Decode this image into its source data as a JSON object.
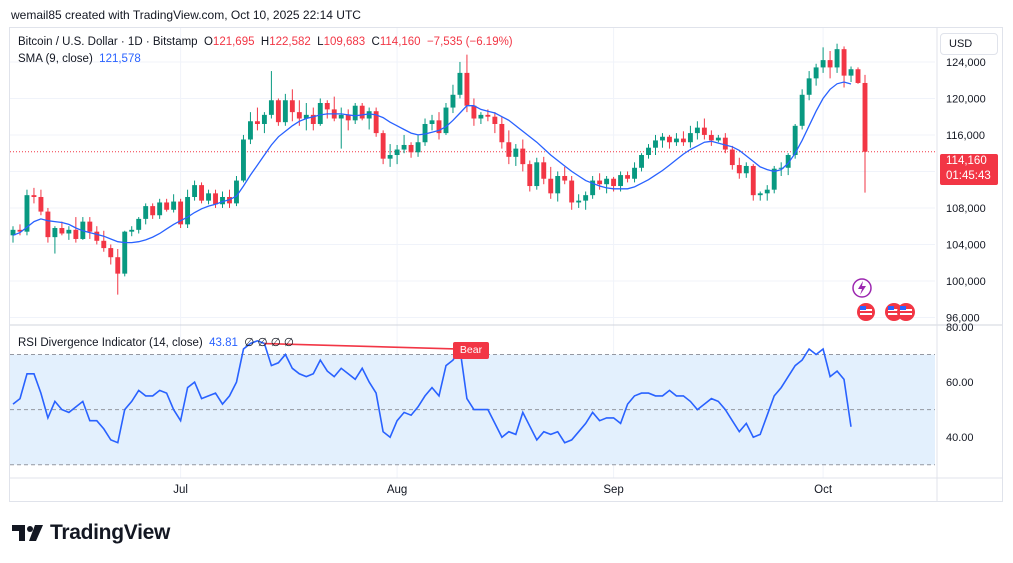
{
  "header": {
    "caption": "wemail85 created with TradingView.com, Oct 10, 2025 22:14 UTC"
  },
  "legend": {
    "symbol": "Bitcoin / U.S. Dollar · 1D · Bitstamp",
    "o_label": "O",
    "o_value": "121,695",
    "h_label": "H",
    "h_value": "122,582",
    "l_label": "L",
    "l_value": "109,683",
    "c_label": "C",
    "c_value": "114,160",
    "change": "−7,535 (−6.19%)",
    "sma_label": "SMA (9, close)",
    "sma_value": "121,578",
    "rsi_label": "RSI Divergence Indicator (14, close)",
    "rsi_value": "43.81",
    "rsi_extra": "∅ ∅ ∅ ∅"
  },
  "currency": "USD",
  "price_badge": {
    "price": "114,160",
    "countdown": "01:45:43"
  },
  "bear_label": "Bear",
  "brand": "TradingView",
  "colors": {
    "up": "#089981",
    "down": "#f23645",
    "sma": "#2962ff",
    "rsi": "#2962ff",
    "rsi_band": "#e3f0fd"
  },
  "icons": [
    "lightning-icon",
    "us-flag-icon",
    "us-flag-icon",
    "us-flag-icon"
  ],
  "chart_data": [
    {
      "type": "candlestick",
      "yaxis_ticks": [
        "124,000",
        "120,000",
        "116,000",
        "112,000",
        "108,000",
        "104,000",
        "100,000",
        "96,000"
      ],
      "yaxis_tick_values": [
        124000,
        120000,
        116000,
        112000,
        108000,
        104000,
        100000,
        96000
      ],
      "ylim": [
        95500,
        127500
      ],
      "xaxis_ticks": [
        "Jul",
        "Aug",
        "Sep",
        "Oct"
      ],
      "xaxis_tick_index": [
        24,
        55,
        86,
        116
      ],
      "last_price": 114160,
      "candles": [
        [
          105000,
          106000,
          104200,
          105600
        ],
        [
          105600,
          106200,
          105000,
          105400
        ],
        [
          105400,
          110000,
          105000,
          109400
        ],
        [
          109400,
          110200,
          108500,
          109200
        ],
        [
          109200,
          110000,
          107200,
          107600
        ],
        [
          107600,
          108000,
          104200,
          104800
        ],
        [
          104800,
          106000,
          103000,
          105800
        ],
        [
          105800,
          106500,
          105000,
          105200
        ],
        [
          105200,
          106000,
          104500,
          105600
        ],
        [
          105600,
          107000,
          104200,
          104600
        ],
        [
          104600,
          107000,
          104500,
          106500
        ],
        [
          106500,
          107000,
          104600,
          105400
        ],
        [
          105400,
          106000,
          104000,
          104400
        ],
        [
          104400,
          105500,
          103200,
          103600
        ],
        [
          103600,
          104000,
          101800,
          102600
        ],
        [
          102600,
          103500,
          98500,
          100800
        ],
        [
          100800,
          105500,
          100500,
          105400
        ],
        [
          105400,
          106000,
          104900,
          105600
        ],
        [
          105600,
          107000,
          105200,
          106800
        ],
        [
          106800,
          108500,
          106200,
          108200
        ],
        [
          108200,
          108500,
          106800,
          107200
        ],
        [
          107200,
          109000,
          106800,
          108600
        ],
        [
          108600,
          109000,
          107600,
          107800
        ],
        [
          107800,
          109500,
          107500,
          108700
        ],
        [
          108700,
          109000,
          105800,
          106200
        ],
        [
          106200,
          110000,
          105800,
          109200
        ],
        [
          109200,
          111000,
          108800,
          110500
        ],
        [
          110500,
          110800,
          108500,
          108800
        ],
        [
          108800,
          110000,
          108400,
          109600
        ],
        [
          109600,
          110000,
          108000,
          108400
        ],
        [
          108400,
          109800,
          108000,
          109200
        ],
        [
          109200,
          110000,
          108000,
          108500
        ],
        [
          108500,
          111500,
          108200,
          111000
        ],
        [
          111000,
          116000,
          110800,
          115500
        ],
        [
          115500,
          118500,
          115000,
          117500
        ],
        [
          117500,
          119000,
          116500,
          117200
        ],
        [
          117200,
          118500,
          116200,
          118200
        ],
        [
          118200,
          123000,
          117800,
          119800
        ],
        [
          119800,
          120000,
          117000,
          117400
        ],
        [
          117400,
          120500,
          117000,
          119800
        ],
        [
          119800,
          121000,
          117500,
          118500
        ],
        [
          118500,
          119800,
          117000,
          117800
        ],
        [
          117800,
          119500,
          116500,
          118200
        ],
        [
          118200,
          119000,
          116500,
          117200
        ],
        [
          117200,
          120000,
          117000,
          119500
        ],
        [
          119500,
          119800,
          117800,
          118800
        ],
        [
          118800,
          120200,
          117500,
          117800
        ],
        [
          117800,
          119000,
          114500,
          118200
        ],
        [
          118200,
          118800,
          116500,
          117600
        ],
        [
          117600,
          119500,
          117200,
          119200
        ],
        [
          119200,
          119500,
          117600,
          117800
        ],
        [
          117800,
          119000,
          116600,
          118600
        ],
        [
          118600,
          119000,
          115800,
          116200
        ],
        [
          116200,
          116500,
          112800,
          113400
        ],
        [
          113400,
          115000,
          112500,
          113800
        ],
        [
          113800,
          114900,
          112800,
          114400
        ],
        [
          114400,
          116000,
          114000,
          114900
        ],
        [
          114900,
          115200,
          113500,
          114100
        ],
        [
          114100,
          116000,
          113600,
          115200
        ],
        [
          115200,
          117800,
          114800,
          117200
        ],
        [
          117200,
          118200,
          116500,
          117600
        ],
        [
          117600,
          118500,
          115500,
          116200
        ],
        [
          116200,
          119500,
          116000,
          119000
        ],
        [
          119000,
          121500,
          118400,
          120400
        ],
        [
          120400,
          124000,
          120000,
          122800
        ],
        [
          122800,
          124800,
          118500,
          119200
        ],
        [
          119200,
          120000,
          117000,
          117800
        ],
        [
          117800,
          118500,
          117200,
          118200
        ],
        [
          118200,
          118800,
          117500,
          118000
        ],
        [
          118000,
          118500,
          116200,
          117200
        ],
        [
          117200,
          118000,
          114500,
          115200
        ],
        [
          115200,
          116500,
          112800,
          113600
        ],
        [
          113600,
          115000,
          112600,
          114500
        ],
        [
          114500,
          115500,
          112000,
          112800
        ],
        [
          112800,
          113200,
          109800,
          110400
        ],
        [
          110400,
          113500,
          110000,
          113000
        ],
        [
          113000,
          113600,
          110600,
          111200
        ],
        [
          111200,
          112500,
          109000,
          109600
        ],
        [
          109600,
          112000,
          108700,
          111500
        ],
        [
          111500,
          112500,
          110600,
          111000
        ],
        [
          111000,
          111500,
          107800,
          108600
        ],
        [
          108600,
          109500,
          108000,
          108800
        ],
        [
          108800,
          109800,
          107800,
          109400
        ],
        [
          109400,
          111500,
          109000,
          111000
        ],
        [
          111000,
          111800,
          110000,
          110600
        ],
        [
          110600,
          111500,
          109600,
          111200
        ],
        [
          111200,
          111400,
          109800,
          110400
        ],
        [
          110400,
          112000,
          109800,
          111600
        ],
        [
          111600,
          112000,
          110800,
          111200
        ],
        [
          111200,
          113000,
          110800,
          112400
        ],
        [
          112400,
          114000,
          112000,
          113800
        ],
        [
          113800,
          115000,
          113400,
          114600
        ],
        [
          114600,
          116000,
          113800,
          115400
        ],
        [
          115400,
          116200,
          114600,
          115800
        ],
        [
          115800,
          116000,
          114500,
          115200
        ],
        [
          115200,
          116200,
          114800,
          115600
        ],
        [
          115600,
          116400,
          114800,
          115200
        ],
        [
          115200,
          117000,
          114600,
          116200
        ],
        [
          116200,
          117500,
          115500,
          116800
        ],
        [
          116800,
          117800,
          115500,
          116000
        ],
        [
          116000,
          116500,
          114800,
          115400
        ],
        [
          115400,
          116000,
          115200,
          115700
        ],
        [
          115700,
          116200,
          114000,
          114400
        ],
        [
          114400,
          114800,
          112200,
          112700
        ],
        [
          112700,
          113500,
          111200,
          111800
        ],
        [
          111800,
          113000,
          111300,
          112600
        ],
        [
          112600,
          112800,
          108800,
          109400
        ],
        [
          109400,
          109800,
          108800,
          109600
        ],
        [
          109600,
          110500,
          108800,
          110000
        ],
        [
          110000,
          112600,
          109600,
          112300
        ],
        [
          112300,
          113000,
          111500,
          112400
        ],
        [
          112400,
          114000,
          111600,
          113800
        ],
        [
          113800,
          117200,
          113400,
          117000
        ],
        [
          117000,
          121000,
          116600,
          120400
        ],
        [
          120400,
          123000,
          119800,
          122200
        ],
        [
          122200,
          123800,
          121400,
          123400
        ],
        [
          123400,
          125600,
          122800,
          124200
        ],
        [
          124200,
          125200,
          122200,
          123400
        ],
        [
          123400,
          126000,
          122800,
          125400
        ],
        [
          125400,
          125700,
          121200,
          122500
        ],
        [
          122500,
          123500,
          121800,
          123200
        ],
        [
          123200,
          123400,
          121600,
          121695
        ],
        [
          121695,
          122582,
          109683,
          114160
        ]
      ],
      "sma_values": [
        105000,
        105300,
        105900,
        106500,
        106800,
        106600,
        106500,
        106400,
        106200,
        105800,
        105500,
        105300,
        105100,
        104900,
        104600,
        104300,
        104200,
        104200,
        104300,
        104500,
        104800,
        105200,
        105700,
        106200,
        106600,
        107000,
        107500,
        107900,
        108200,
        108400,
        108700,
        108900,
        109300,
        110400,
        111600,
        112700,
        113800,
        114900,
        115800,
        116400,
        117000,
        117500,
        117800,
        118000,
        118200,
        118300,
        118300,
        118300,
        118200,
        118100,
        118200,
        118300,
        118200,
        117900,
        117400,
        117000,
        116600,
        116200,
        116000,
        116100,
        116300,
        116500,
        116900,
        117600,
        118400,
        119200,
        119200,
        118800,
        118600,
        118400,
        118000,
        117600,
        117000,
        116400,
        115800,
        115200,
        114500,
        113800,
        113200,
        112600,
        112000,
        111500,
        111000,
        110700,
        110400,
        110200,
        110100,
        110100,
        110100,
        110300,
        110700,
        111100,
        111600,
        112100,
        112700,
        113300,
        113900,
        114400,
        114800,
        115200,
        115300,
        115100,
        114900,
        114700,
        114300,
        113700,
        113100,
        112500,
        112200,
        112000,
        112200,
        112900,
        114000,
        115400,
        117000,
        118600,
        120000,
        121000,
        121600,
        121800,
        121578
      ]
    },
    {
      "type": "line",
      "title": "RSI Divergence Indicator (14, close)",
      "yaxis_ticks": [
        "80.00",
        "60.00",
        "40.00"
      ],
      "yaxis_tick_values": [
        80,
        60,
        40
      ],
      "ylim": [
        27,
        80
      ],
      "bands": [
        30,
        50,
        70
      ],
      "values": [
        52,
        54,
        63,
        63,
        56,
        47,
        53,
        50,
        49,
        51,
        53,
        46,
        46,
        43,
        39,
        38,
        50,
        53,
        57,
        55,
        55,
        57,
        56,
        50,
        46,
        58,
        60,
        54,
        55,
        56,
        52,
        55,
        60,
        72,
        74,
        75,
        74,
        66,
        67,
        70,
        65,
        63,
        62,
        63,
        68,
        64,
        62,
        65,
        63,
        61,
        65,
        60,
        56,
        42,
        40,
        46,
        49,
        48,
        51,
        55,
        58,
        55,
        66,
        68,
        72,
        54,
        50,
        50,
        50,
        45,
        40,
        42,
        41,
        49,
        44,
        39,
        42,
        41,
        42,
        38,
        39,
        42,
        45,
        49,
        46,
        47,
        47,
        45,
        52,
        55,
        56,
        56,
        55,
        55,
        57,
        55,
        55,
        53,
        50,
        52,
        54,
        53,
        50,
        46,
        42,
        45,
        40,
        41,
        48,
        55,
        58,
        62,
        66,
        68,
        72,
        70,
        72,
        62,
        64,
        61,
        43.81
      ],
      "divergence": {
        "from_index": 36,
        "to_index": 64,
        "label": "Bear"
      }
    }
  ]
}
